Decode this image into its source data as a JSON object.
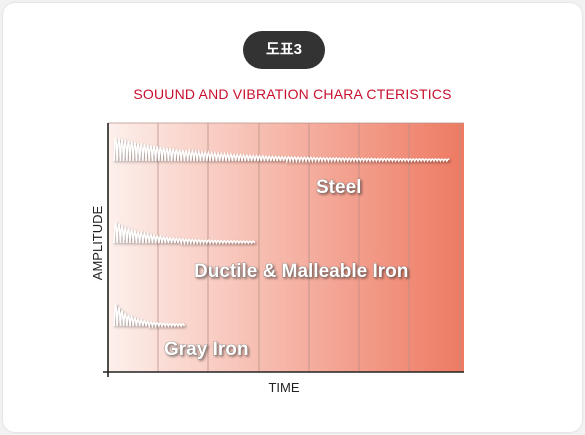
{
  "badge": "도표3",
  "colors": {
    "title": "#c8102e",
    "badge_bg": "#333333",
    "gradient_start": "#fdf0ec",
    "gradient_end": "#ee7a62",
    "waveform": "#ffffff"
  },
  "chart_data": {
    "type": "line",
    "title": "SOUUND AND VIBRATION CHARA CTERISTICS",
    "xlabel": "TIME",
    "ylabel": "AMPLITUDE",
    "grid": true,
    "legend": "none",
    "series": [
      {
        "name": "Steel",
        "relative_decay_length": 1.0
      },
      {
        "name": "Ductile & Malleable Iron",
        "relative_decay_length": 0.42
      },
      {
        "name": "Gray Iron",
        "relative_decay_length": 0.21
      }
    ]
  }
}
